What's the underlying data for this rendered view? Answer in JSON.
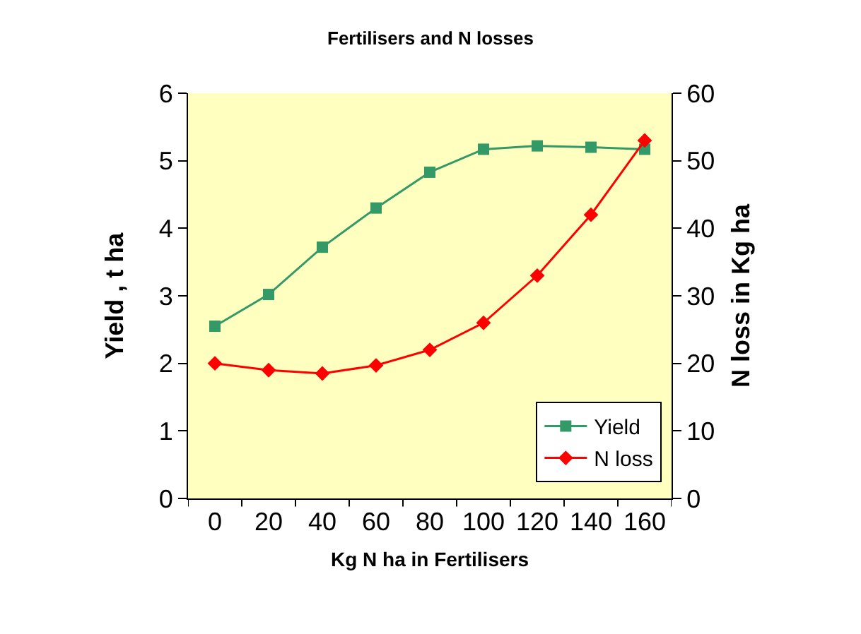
{
  "chart_data": {
    "type": "line",
    "title": "Fertilisers and N losses",
    "xlabel": "Kg N ha in Fertilisers",
    "ylabel": "Yield , t ha",
    "y2label": "N loss in Kg ha",
    "categories": [
      "0",
      "20",
      "40",
      "60",
      "80",
      "100",
      "120",
      "140",
      "160"
    ],
    "series": [
      {
        "name": "Yield",
        "color": "#339966",
        "marker": "square",
        "values": [
          2.55,
          3.02,
          3.72,
          4.3,
          4.83,
          5.17,
          5.22,
          5.2,
          5.17
        ]
      },
      {
        "name": "N loss",
        "color": "#ff0000",
        "marker": "diamond",
        "axis": "y2",
        "values": [
          20,
          19,
          18.5,
          19.7,
          22,
          26,
          33,
          42,
          53
        ]
      }
    ],
    "ylim": [
      0,
      6
    ],
    "yticks": [
      0,
      1,
      2,
      3,
      4,
      5,
      6
    ],
    "y2lim": [
      0,
      60
    ],
    "y2ticks": [
      0,
      10,
      20,
      30,
      40,
      50,
      60
    ],
    "grid": false,
    "legend": "bottom right"
  }
}
